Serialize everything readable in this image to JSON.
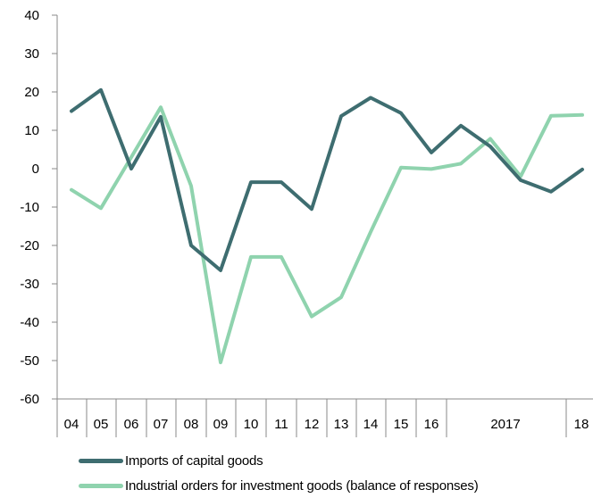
{
  "chart_data": {
    "type": "line",
    "title": "",
    "xlabel": "",
    "ylabel": "",
    "ylim": [
      -60,
      40
    ],
    "yticks": [
      40,
      30,
      20,
      10,
      0,
      -10,
      -20,
      -30,
      -40,
      -50,
      -60
    ],
    "x_tick_labels": [
      "04",
      "05",
      "06",
      "07",
      "08",
      "09",
      "10",
      "11",
      "12",
      "13",
      "14",
      "15",
      "16",
      "",
      "2017",
      "",
      "18"
    ],
    "x": [
      2004,
      2005,
      2006,
      2007,
      2008,
      2009,
      2010,
      2011,
      2012,
      2013,
      2014,
      2015,
      2016,
      "2016 H2",
      "2017 Q1",
      "2017 Q2",
      "2017 Q3",
      "2017 Q4",
      "18"
    ],
    "grid": false,
    "legend_position": "bottom",
    "series": [
      {
        "name": "Imports of capital goods",
        "color": "#3e6d70",
        "values": [
          15,
          20.5,
          0,
          13.5,
          -20,
          -26.5,
          -3.5,
          -3.5,
          -10.5,
          13.7,
          18.5,
          14.5,
          4.2,
          11.2,
          5.8,
          -3,
          -6,
          null,
          -0.2
        ]
      },
      {
        "name": "Industrial orders for investment goods (balance of responses)",
        "color": "#8fd3ae",
        "values": [
          -5.5,
          -10.3,
          3,
          16,
          -4.5,
          -50.5,
          -23,
          -23,
          -38.5,
          -33.5,
          -16.5,
          0.3,
          -0.1,
          1.3,
          7.8,
          -2,
          13.8,
          null,
          14
        ]
      }
    ]
  }
}
